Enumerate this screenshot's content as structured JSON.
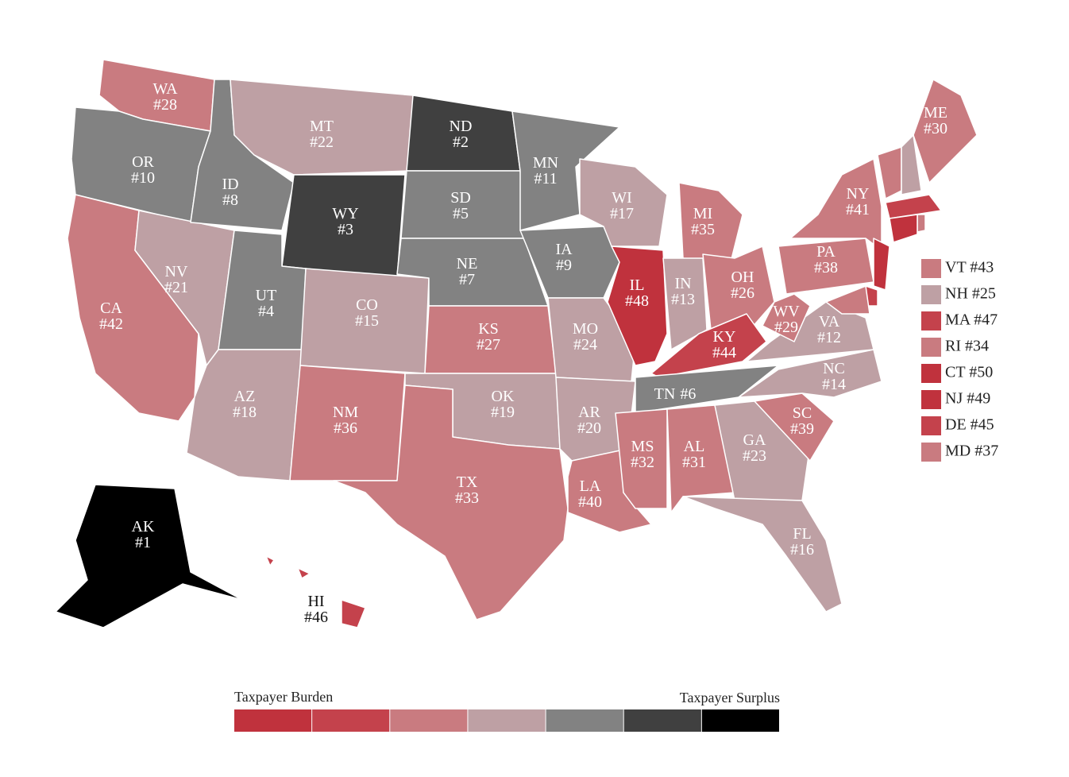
{
  "map": {
    "states": [
      {
        "label": "WA",
        "rank": "#28",
        "color": "#c97b80"
      },
      {
        "label": "OR",
        "rank": "#10",
        "color": "#828282"
      },
      {
        "label": "CA",
        "rank": "#42",
        "color": "#c97b80"
      },
      {
        "label": "NV",
        "rank": "#21",
        "color": "#bea0a4"
      },
      {
        "label": "ID",
        "rank": "#8",
        "color": "#828282"
      },
      {
        "label": "MT",
        "rank": "#22",
        "color": "#bea0a4"
      },
      {
        "label": "WY",
        "rank": "#3",
        "color": "#404040"
      },
      {
        "label": "UT",
        "rank": "#4",
        "color": "#828282"
      },
      {
        "label": "AZ",
        "rank": "#18",
        "color": "#bea0a4"
      },
      {
        "label": "CO",
        "rank": "#15",
        "color": "#bea0a4"
      },
      {
        "label": "NM",
        "rank": "#36",
        "color": "#c97b80"
      },
      {
        "label": "ND",
        "rank": "#2",
        "color": "#404040"
      },
      {
        "label": "SD",
        "rank": "#5",
        "color": "#828282"
      },
      {
        "label": "NE",
        "rank": "#7",
        "color": "#828282"
      },
      {
        "label": "KS",
        "rank": "#27",
        "color": "#c97b80"
      },
      {
        "label": "OK",
        "rank": "#19",
        "color": "#bea0a4"
      },
      {
        "label": "TX",
        "rank": "#33",
        "color": "#c97b80"
      },
      {
        "label": "MN",
        "rank": "#11",
        "color": "#828282"
      },
      {
        "label": "IA",
        "rank": "#9",
        "color": "#828282"
      },
      {
        "label": "MO",
        "rank": "#24",
        "color": "#bea0a4"
      },
      {
        "label": "AR",
        "rank": "#20",
        "color": "#bea0a4"
      },
      {
        "label": "LA",
        "rank": "#40",
        "color": "#c97b80"
      },
      {
        "label": "WI",
        "rank": "#17",
        "color": "#bea0a4"
      },
      {
        "label": "IL",
        "rank": "#48",
        "color": "#c0323d"
      },
      {
        "label": "MI",
        "rank": "#35",
        "color": "#c97b80"
      },
      {
        "label": "IN",
        "rank": "#13",
        "color": "#bea0a4"
      },
      {
        "label": "OH",
        "rank": "#26",
        "color": "#c97b80"
      },
      {
        "label": "KY",
        "rank": "#44",
        "color": "#c4424c"
      },
      {
        "label": "TN",
        "rank": "#6",
        "color": "#828282"
      },
      {
        "label": "MS",
        "rank": "#32",
        "color": "#c97b80"
      },
      {
        "label": "AL",
        "rank": "#31",
        "color": "#c97b80"
      },
      {
        "label": "GA",
        "rank": "#23",
        "color": "#bea0a4"
      },
      {
        "label": "FL",
        "rank": "#16",
        "color": "#bea0a4"
      },
      {
        "label": "SC",
        "rank": "#39",
        "color": "#c97b80"
      },
      {
        "label": "NC",
        "rank": "#14",
        "color": "#bea0a4"
      },
      {
        "label": "VA",
        "rank": "#12",
        "color": "#bea0a4"
      },
      {
        "label": "WV",
        "rank": "#29",
        "color": "#c97b80"
      },
      {
        "label": "PA",
        "rank": "#38",
        "color": "#c97b80"
      },
      {
        "label": "NY",
        "rank": "#41",
        "color": "#c97b80"
      },
      {
        "label": "ME",
        "rank": "#30",
        "color": "#c97b80"
      },
      {
        "label": "AK",
        "rank": "#1",
        "color": "#000000"
      },
      {
        "label": "HI",
        "rank": "#46",
        "color": "#c4424c"
      }
    ],
    "callout_states": [
      {
        "label": "VT #43",
        "color": "#c97b80"
      },
      {
        "label": "NH #25",
        "color": "#bea0a4"
      },
      {
        "label": "MA #47",
        "color": "#c4424c"
      },
      {
        "label": "RI #34",
        "color": "#c97b80"
      },
      {
        "label": "CT #50",
        "color": "#c0323d"
      },
      {
        "label": "NJ #49",
        "color": "#c0323d"
      },
      {
        "label": "DE #45",
        "color": "#c4424c"
      },
      {
        "label": "MD #37",
        "color": "#c97b80"
      }
    ]
  },
  "legend": {
    "left_label": "Taxpayer Burden",
    "right_label": "Taxpayer Surplus",
    "colors": [
      "#c0323d",
      "#c4424c",
      "#c97b80",
      "#bea0a4",
      "#828282",
      "#404040",
      "#000000"
    ]
  }
}
